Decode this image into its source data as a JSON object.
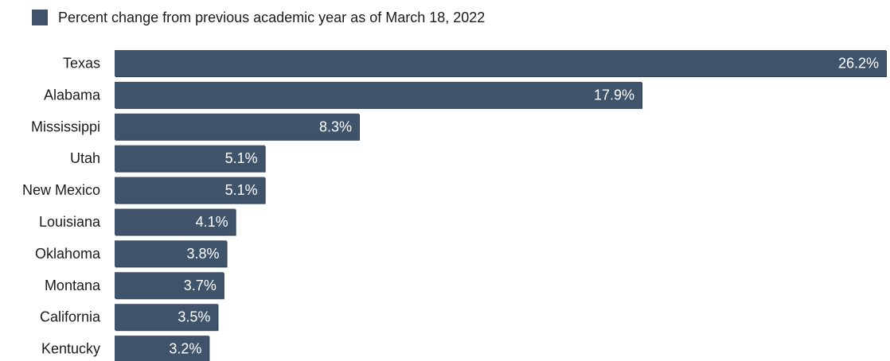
{
  "colors": {
    "bar": "#3f546b",
    "bar_shadow": "#2c3f55",
    "label_text": "#1a1a1a",
    "value_text": "#ffffff"
  },
  "chart_data": {
    "type": "bar",
    "orientation": "horizontal",
    "legend": {
      "position": "top-left",
      "entries": [
        "Percent change from previous academic year as of March 18, 2022"
      ]
    },
    "categories": [
      "Texas",
      "Alabama",
      "Mississippi",
      "Utah",
      "New Mexico",
      "Louisiana",
      "Oklahoma",
      "Montana",
      "California",
      "Kentucky"
    ],
    "series": [
      {
        "name": "Percent change from previous academic year as of March 18, 2022",
        "values": [
          26.2,
          17.9,
          8.3,
          5.1,
          5.1,
          4.1,
          3.8,
          3.7,
          3.5,
          3.2
        ],
        "labels": [
          "26.2%",
          "17.9%",
          "8.3%",
          "5.1%",
          "5.1%",
          "4.1%",
          "3.8%",
          "3.7%",
          "3.5%",
          "3.2%"
        ]
      }
    ],
    "xlim": [
      0,
      26.2
    ],
    "grid": false
  }
}
